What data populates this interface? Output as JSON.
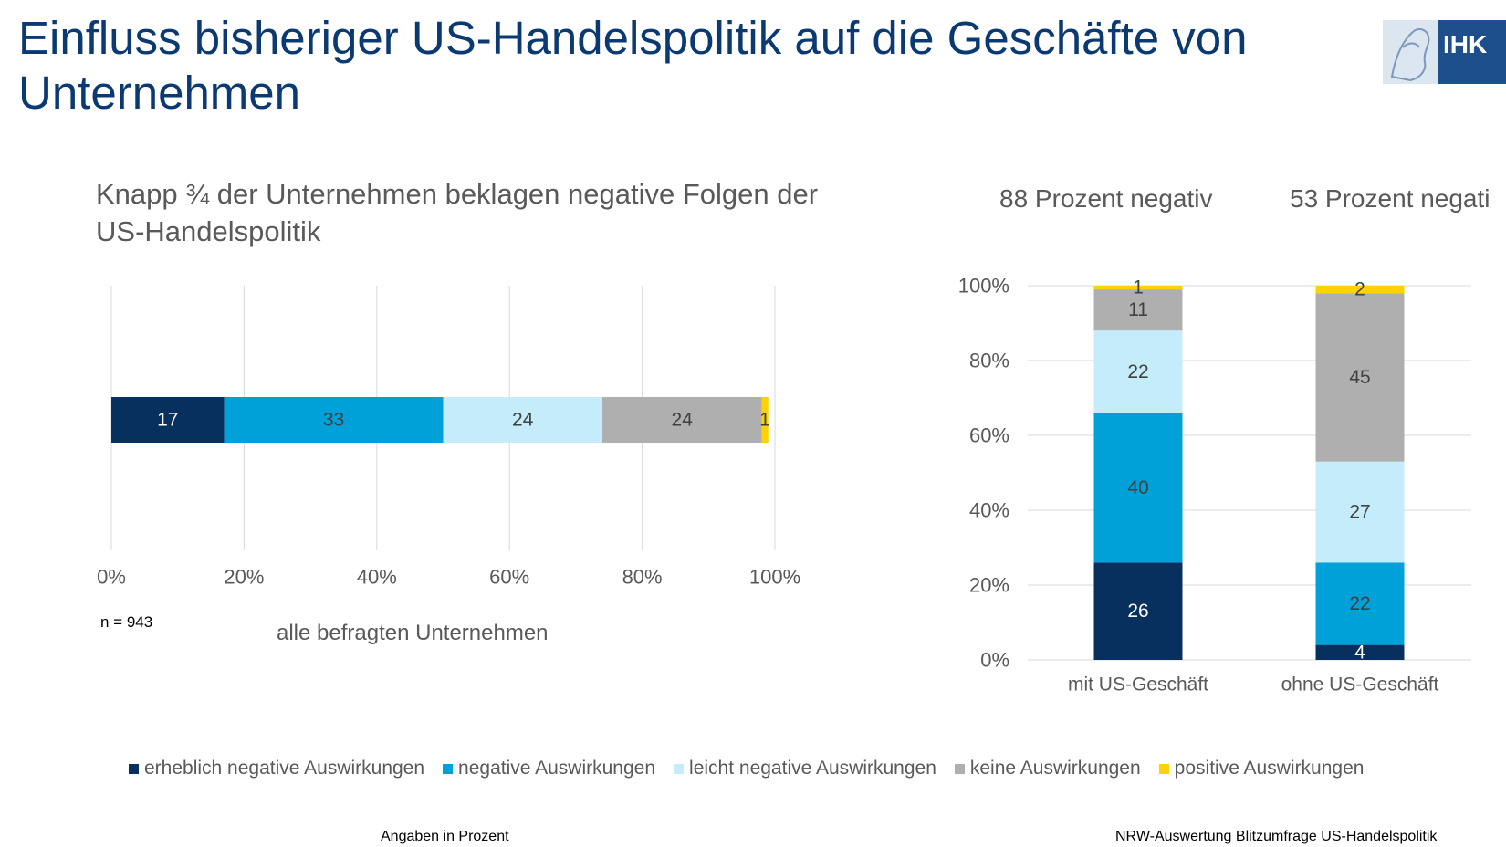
{
  "page": {
    "title": "Einfluss bisheriger US-Handelspolitik auf die Geschäfte von Unternehmen",
    "logo_text": "IHK",
    "footer_left": "Angaben in Prozent",
    "footer_right": "NRW-Auswertung Blitzumfrage US-Handelspolitik"
  },
  "colors": {
    "title": "#0b3a73",
    "series": [
      "#08305f",
      "#00a0d8",
      "#c5ecfa",
      "#afafaf",
      "#ffd200"
    ],
    "label_text": [
      "#ffffff",
      "#404040",
      "#404040",
      "#404040",
      "#404040"
    ]
  },
  "chart_data": [
    {
      "type": "bar",
      "orientation": "horizontal",
      "stacked": true,
      "title": "Knapp ¾ der Unternehmen beklagen negative Folgen der US-Handelspolitik",
      "categories": [
        "alle befragten Unternehmen"
      ],
      "series": [
        {
          "name": "erheblich negative Auswirkungen",
          "values": [
            17
          ]
        },
        {
          "name": "negative Auswirkungen",
          "values": [
            33
          ]
        },
        {
          "name": "leicht negative Auswirkungen",
          "values": [
            24
          ]
        },
        {
          "name": "keine Auswirkungen",
          "values": [
            24
          ]
        },
        {
          "name": "positive Auswirkungen",
          "values": [
            1
          ]
        }
      ],
      "xlim": [
        0,
        100
      ],
      "x_ticks": [
        "0%",
        "20%",
        "40%",
        "60%",
        "80%",
        "100%"
      ],
      "grid": true,
      "note": "n = 943",
      "legend_position": "bottom"
    },
    {
      "type": "bar",
      "orientation": "vertical",
      "stacked": true,
      "panel_titles": [
        "88 Prozent negativ",
        "53 Prozent negati"
      ],
      "categories": [
        "mit US-Geschäft",
        "ohne US-Geschäft"
      ],
      "series": [
        {
          "name": "erheblich negative Auswirkungen",
          "values": [
            26,
            4
          ]
        },
        {
          "name": "negative Auswirkungen",
          "values": [
            40,
            22
          ]
        },
        {
          "name": "leicht negative Auswirkungen",
          "values": [
            22,
            27
          ]
        },
        {
          "name": "keine Auswirkungen",
          "values": [
            11,
            45
          ]
        },
        {
          "name": "positive Auswirkungen",
          "values": [
            1,
            2
          ]
        }
      ],
      "ylim": [
        0,
        100
      ],
      "y_ticks": [
        "0%",
        "20%",
        "40%",
        "60%",
        "80%",
        "100%"
      ],
      "grid": true,
      "legend_position": "bottom"
    }
  ]
}
